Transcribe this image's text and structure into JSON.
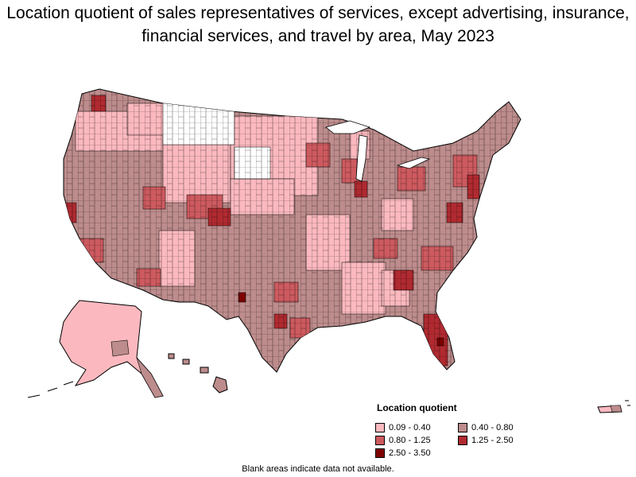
{
  "title": "Location quotient of sales representatives of services, except advertising, insurance, financial services, and travel by area, May 2023",
  "legend": {
    "title": "Location quotient",
    "items": [
      {
        "label": "0.09 - 0.40",
        "color": "#fbb9bf"
      },
      {
        "label": "0.40 - 0.80",
        "color": "#bd8c8c"
      },
      {
        "label": "0.80 - 1.25",
        "color": "#cd5a5f"
      },
      {
        "label": "1.25 - 2.50",
        "color": "#b02a30"
      },
      {
        "label": "2.50 - 3.50",
        "color": "#800000"
      }
    ]
  },
  "footnote": "Blank areas indicate data not available.",
  "colors": {
    "border": "#000000",
    "no_data": "#ffffff"
  }
}
